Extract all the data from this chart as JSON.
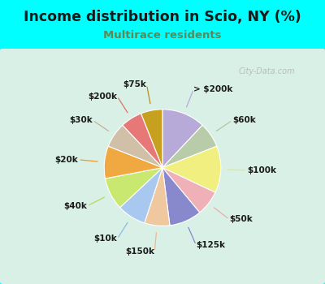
{
  "title": "Income distribution in Scio, NY (%)",
  "subtitle": "Multirace residents",
  "title_color": "#1a1a1a",
  "subtitle_color": "#5a8a5a",
  "bg_color": "#00ffff",
  "chart_bg_top": "#e8f8f0",
  "chart_bg_bottom": "#c8eee0",
  "watermark": "City-Data.com",
  "labels": [
    "> $200k",
    "$60k",
    "$100k",
    "$50k",
    "$125k",
    "$150k",
    "$10k",
    "$40k",
    "$20k",
    "$30k",
    "$200k",
    "$75k"
  ],
  "values": [
    12,
    7,
    13,
    7,
    9,
    7,
    8,
    9,
    9,
    7,
    6,
    6
  ],
  "colors": [
    "#b8aad8",
    "#b8ccaa",
    "#f0ef80",
    "#f0b0b8",
    "#8888cc",
    "#f0c8a0",
    "#a8c8f0",
    "#c8e870",
    "#f0a840",
    "#d0c0a8",
    "#e87878",
    "#c8a020"
  ],
  "line_colors": [
    "#b8aad8",
    "#b0c8a0",
    "#e8e870",
    "#f0a8b0",
    "#8888cc",
    "#f0b890",
    "#90b8e8",
    "#b8d860",
    "#f09830",
    "#c8b098",
    "#e07070",
    "#b89018"
  ],
  "startangle": 90
}
